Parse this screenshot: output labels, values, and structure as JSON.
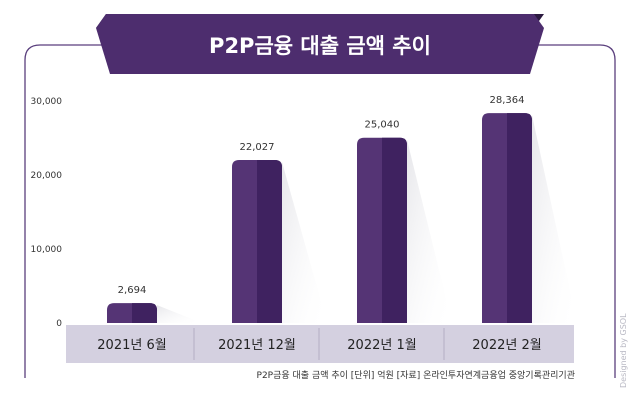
{
  "chart_data": {
    "type": "bar",
    "title": "P2P금융 대출 금액 추이",
    "categories": [
      "2021년 6월",
      "2021년 12월",
      "2022년 1월",
      "2022년 2월"
    ],
    "values": [
      2694,
      22027,
      25040,
      28364
    ],
    "value_labels": [
      "2,694",
      "22,027",
      "25,040",
      "28,364"
    ],
    "ylim": [
      0,
      30000
    ],
    "yticks": [
      0,
      10000,
      20000,
      30000
    ],
    "ytick_labels": [
      "0",
      "10,000",
      "20,000",
      "30,000"
    ],
    "grid": false,
    "xlabel": "",
    "ylabel": "",
    "colors": {
      "bar": "#553475",
      "bar_dark": "#3f2260",
      "title_bg": "#4d2d6e",
      "frame": "#5a3f7d",
      "axis_band": "#d4d0e0"
    }
  },
  "footer": {
    "note": "P2P금융 대출 금액 추이  [단위] 억원  [자료] 온라인투자연계금융업 중앙기록관리기관"
  },
  "credit": "Designed by GSOL"
}
